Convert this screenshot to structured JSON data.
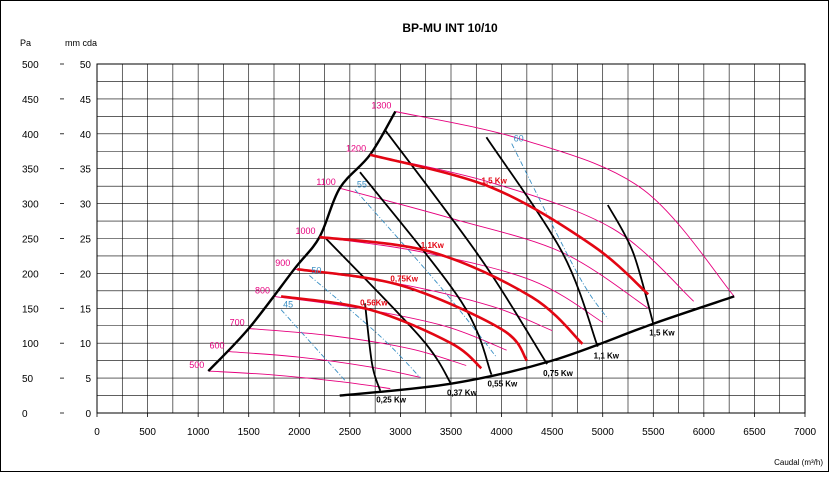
{
  "chart_data": {
    "type": "line",
    "title": "BP-MU INT 10/10",
    "xlabel": "Caudal (m³/h)",
    "ylabel_pa": "Pa",
    "ylabel_mmcda": "mm cda",
    "xlim": [
      0,
      7000
    ],
    "x_ticks": [
      0,
      500,
      1000,
      1500,
      2000,
      2500,
      3000,
      3500,
      4000,
      4500,
      5000,
      5500,
      6000,
      6500,
      7000
    ],
    "ylim_pa": [
      0,
      500
    ],
    "y_ticks_pa": [
      0,
      50,
      100,
      150,
      200,
      250,
      300,
      350,
      400,
      450,
      500
    ],
    "ylim_mmcda": [
      0,
      50
    ],
    "y_ticks_mmcda": [
      0,
      5,
      10,
      15,
      20,
      25,
      30,
      35,
      40,
      45,
      50
    ],
    "grid": true,
    "colors": {
      "frame": "#000000",
      "grid": "#000000",
      "speed": "#e6007e",
      "efficiency": "#3a8fc4",
      "power": "#e30613",
      "boundary": "#000000"
    },
    "speed_curves": [
      {
        "label": "500",
        "points": [
          [
            1100,
            60
          ],
          [
            1700,
            55
          ],
          [
            2400,
            45
          ],
          [
            2900,
            35
          ]
        ]
      },
      {
        "label": "600",
        "points": [
          [
            1300,
            88
          ],
          [
            2000,
            80
          ],
          [
            2700,
            66
          ],
          [
            3200,
            51
          ]
        ]
      },
      {
        "label": "700",
        "points": [
          [
            1500,
            121
          ],
          [
            2300,
            111
          ],
          [
            3100,
            92
          ],
          [
            3650,
            68
          ]
        ]
      },
      {
        "label": "800",
        "points": [
          [
            1750,
            167
          ],
          [
            2600,
            150
          ],
          [
            3450,
            124
          ],
          [
            4050,
            90
          ]
        ]
      },
      {
        "label": "900",
        "points": [
          [
            1950,
            206
          ],
          [
            2950,
            186
          ],
          [
            3900,
            153
          ],
          [
            4500,
            118
          ]
        ]
      },
      {
        "label": "1000",
        "points": [
          [
            2200,
            252
          ],
          [
            3200,
            231
          ],
          [
            4300,
            190
          ],
          [
            5000,
            130
          ]
        ]
      },
      {
        "label": "1100",
        "points": [
          [
            2400,
            322
          ],
          [
            3500,
            279
          ],
          [
            4600,
            230
          ],
          [
            5450,
            150
          ]
        ]
      },
      {
        "label": "1200",
        "points": [
          [
            2700,
            370
          ],
          [
            3900,
            330
          ],
          [
            5100,
            264
          ],
          [
            5900,
            160
          ]
        ]
      },
      {
        "label": "1300",
        "points": [
          [
            2950,
            432
          ],
          [
            4200,
            392
          ],
          [
            5400,
            320
          ],
          [
            6300,
            167
          ]
        ]
      }
    ],
    "efficiency_curves": [
      {
        "label": "45",
        "points": [
          [
            1820,
            148
          ],
          [
            2150,
            95
          ],
          [
            2450,
            47
          ]
        ]
      },
      {
        "label": "50",
        "points": [
          [
            2100,
            197
          ],
          [
            2800,
            110
          ],
          [
            3200,
            50
          ]
        ]
      },
      {
        "label": "55",
        "points": [
          [
            2550,
            320
          ],
          [
            3400,
            180
          ],
          [
            3950,
            80
          ]
        ]
      },
      {
        "label": "60",
        "points": [
          [
            4100,
            386
          ],
          [
            4750,
            200
          ],
          [
            5050,
            135
          ]
        ]
      }
    ],
    "power_curves": [
      {
        "label": "0,56Kw",
        "points": [
          [
            1820,
            167
          ],
          [
            2700,
            148
          ],
          [
            3500,
            100
          ],
          [
            3800,
            64
          ]
        ]
      },
      {
        "label": "0,75Kw",
        "points": [
          [
            1980,
            206
          ],
          [
            3000,
            183
          ],
          [
            4000,
            120
          ],
          [
            4250,
            75
          ]
        ]
      },
      {
        "label": "1,1Kw",
        "points": [
          [
            2200,
            252
          ],
          [
            3300,
            231
          ],
          [
            4300,
            166
          ],
          [
            4800,
            99
          ]
        ]
      },
      {
        "label": "1,5 Kw",
        "points": [
          [
            2700,
            370
          ],
          [
            3900,
            323
          ],
          [
            4900,
            240
          ],
          [
            5450,
            170
          ]
        ]
      }
    ],
    "power_limit_lines": [
      {
        "label": "0,25 Kw",
        "points": [
          [
            2650,
            157
          ],
          [
            2720,
            70
          ],
          [
            2800,
            32
          ]
        ]
      },
      {
        "label": "0,37 Kw",
        "points": [
          [
            2250,
            252
          ],
          [
            3200,
            108
          ],
          [
            3500,
            42
          ]
        ]
      },
      {
        "label": "0,55 Kw",
        "points": [
          [
            2600,
            345
          ],
          [
            3600,
            160
          ],
          [
            3900,
            55
          ]
        ]
      },
      {
        "label": "0,75 Kw",
        "points": [
          [
            2850,
            405
          ],
          [
            3800,
            220
          ],
          [
            4450,
            70
          ]
        ]
      },
      {
        "label": "1,1 Kw",
        "points": [
          [
            3850,
            395
          ],
          [
            4600,
            230
          ],
          [
            4950,
            95
          ]
        ]
      },
      {
        "label": "1,5 Kw",
        "points": [
          [
            5050,
            298
          ],
          [
            5300,
            230
          ],
          [
            5500,
            128
          ]
        ]
      }
    ],
    "boundary_left": [
      [
        1100,
        60
      ],
      [
        1500,
        121
      ],
      [
        1950,
        206
      ],
      [
        2200,
        252
      ],
      [
        2400,
        322
      ],
      [
        2700,
        370
      ],
      [
        2950,
        432
      ]
    ],
    "boundary_bottom": [
      [
        2400,
        25
      ],
      [
        3500,
        42
      ],
      [
        4500,
        75
      ],
      [
        5500,
        128
      ],
      [
        6300,
        167
      ]
    ],
    "annotations": []
  }
}
